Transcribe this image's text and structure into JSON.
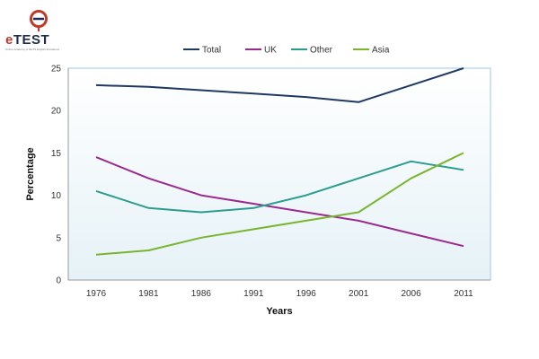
{
  "logo": {
    "brand_e": "e",
    "brand_rest": "TEST",
    "tagline": "Online Academy of IELTS English Excellence"
  },
  "chart_data": {
    "type": "line",
    "title": "",
    "xlabel": "Years",
    "ylabel": "Percentage",
    "categories": [
      "1976",
      "1981",
      "1986",
      "1991",
      "1996",
      "2001",
      "2006",
      "2011"
    ],
    "ylim": [
      0,
      25
    ],
    "yticks": [
      0,
      5,
      10,
      15,
      20,
      25
    ],
    "grid": false,
    "legend": "top",
    "series": [
      {
        "name": "Total",
        "color": "#1f3864",
        "values": [
          23,
          22.8,
          22.4,
          22,
          21.6,
          21,
          23,
          25
        ]
      },
      {
        "name": "UK",
        "color": "#9b2a8f",
        "values": [
          14.5,
          12,
          10,
          9,
          8,
          7,
          5.5,
          4
        ]
      },
      {
        "name": "Other",
        "color": "#2a9d8f",
        "values": [
          10.5,
          8.5,
          8,
          8.5,
          10,
          12,
          14,
          13
        ]
      },
      {
        "name": "Asia",
        "color": "#7ab530",
        "values": [
          3,
          3.5,
          5,
          6,
          7,
          8,
          12,
          15
        ]
      }
    ]
  }
}
